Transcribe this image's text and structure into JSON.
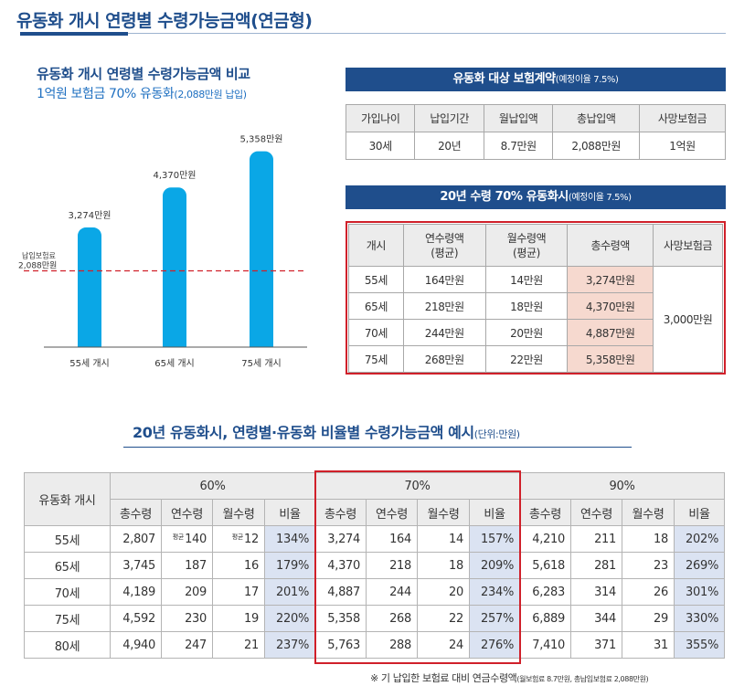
{
  "page": {
    "title": "유동화 개시 연령별 수령가능금액(연금형)"
  },
  "chart": {
    "title": "유동화 개시 연령별 수령가능금액 비교",
    "subtitle_main": "1억원 보험금 70% 유동화",
    "subtitle_small": "(2,088만원 납입)",
    "reference_label_line1": "납입보험료",
    "reference_label_line2": "2,088만원"
  },
  "chart_data": {
    "type": "bar",
    "title": "유동화 개시 연령별 수령가능금액 비교",
    "categories": [
      "55세 개시",
      "65세 개시",
      "75세 개시"
    ],
    "values": [
      3274,
      4370,
      5358
    ],
    "data_labels": [
      "3,274만원",
      "4,370만원",
      "5,358만원"
    ],
    "reference_line": 2088,
    "ylim": [
      0,
      6000
    ],
    "grid": false,
    "bar_color": "#0aa7e6",
    "reference_color": "#d0202a"
  },
  "contract": {
    "heading_main": "유동화 대상 보험계약",
    "heading_small": "(예정이율 7.5%)",
    "headers": [
      "가입나이",
      "납입기간",
      "월납입액",
      "총납입액",
      "사망보험금"
    ],
    "row": [
      "30세",
      "20년",
      "8.7만원",
      "2,088만원",
      "1억원"
    ]
  },
  "scenario": {
    "heading_main": "20년 수령 70% 유동화시",
    "heading_small": "(예정이율 7.5%)",
    "headers": [
      "개시",
      "연수령액\n(평균)",
      "월수령액\n(평균)",
      "총수령액",
      "사망보험금"
    ],
    "rows": [
      [
        "55세",
        "164만원",
        "14만원",
        "3,274만원"
      ],
      [
        "65세",
        "218만원",
        "18만원",
        "4,370만원"
      ],
      [
        "70세",
        "244만원",
        "20만원",
        "4,887만원"
      ],
      [
        "75세",
        "268만원",
        "22만원",
        "5,358만원"
      ]
    ],
    "death_benefit": "3,000만원"
  },
  "examples": {
    "heading_main": "20년 유동화시, 연령별·유동화 비율별 수령가능금액 예시",
    "heading_small": "(단위:만원)",
    "corner": "유동화 개시",
    "groups": [
      "60%",
      "70%",
      "90%"
    ],
    "subheaders": [
      "총수령",
      "연수령",
      "월수령",
      "비율"
    ],
    "avg_mark": "평균",
    "rows": [
      {
        "age": "55세",
        "g60": [
          "2,807",
          "140",
          "12",
          "134%"
        ],
        "g70": [
          "3,274",
          "164",
          "14",
          "157%"
        ],
        "g90": [
          "4,210",
          "211",
          "18",
          "202%"
        ]
      },
      {
        "age": "65세",
        "g60": [
          "3,745",
          "187",
          "16",
          "179%"
        ],
        "g70": [
          "4,370",
          "218",
          "18",
          "209%"
        ],
        "g90": [
          "5,618",
          "281",
          "23",
          "269%"
        ]
      },
      {
        "age": "70세",
        "g60": [
          "4,189",
          "209",
          "17",
          "201%"
        ],
        "g70": [
          "4,887",
          "244",
          "20",
          "234%"
        ],
        "g90": [
          "6,283",
          "314",
          "26",
          "301%"
        ]
      },
      {
        "age": "75세",
        "g60": [
          "4,592",
          "230",
          "19",
          "220%"
        ],
        "g70": [
          "5,358",
          "268",
          "22",
          "257%"
        ],
        "g90": [
          "6,889",
          "344",
          "29",
          "330%"
        ]
      },
      {
        "age": "80세",
        "g60": [
          "4,940",
          "247",
          "21",
          "237%"
        ],
        "g70": [
          "5,763",
          "288",
          "24",
          "276%"
        ],
        "g90": [
          "7,410",
          "371",
          "31",
          "355%"
        ]
      }
    ]
  },
  "footnote": {
    "main": "※ 기 납입한 보험료 대비 연금수령액",
    "small": "(월보험료 8.7만원, 총납입보험료 2,088만원)"
  }
}
